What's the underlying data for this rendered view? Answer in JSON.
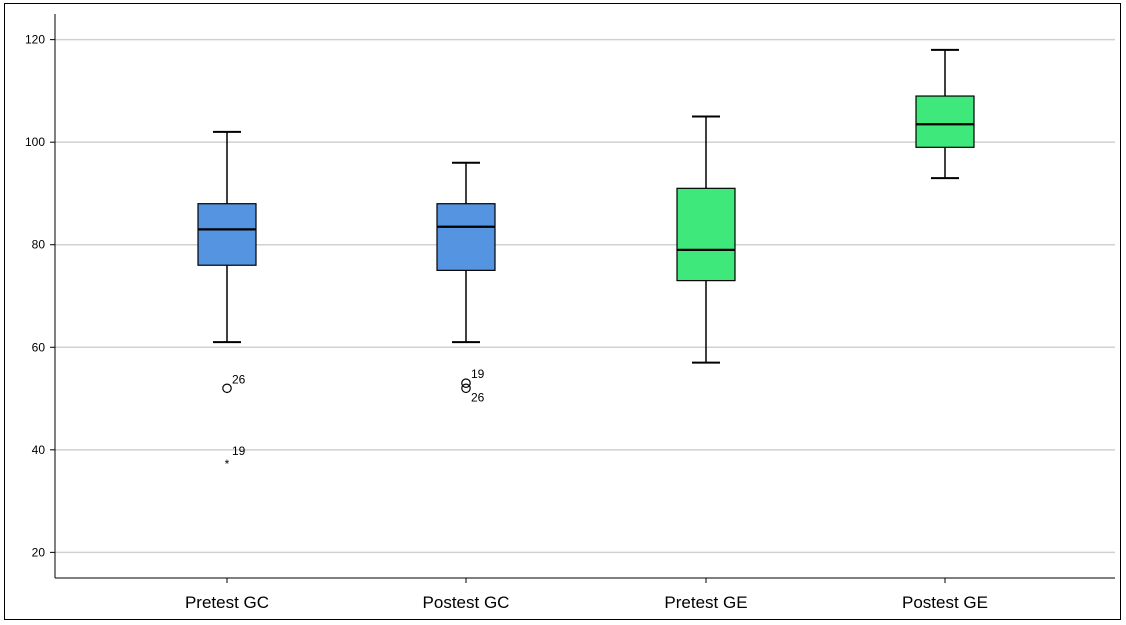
{
  "chart_data": {
    "type": "boxplot",
    "title": "",
    "xlabel": "",
    "ylabel": "",
    "ylim": [
      15,
      125
    ],
    "yticks": [
      20,
      40,
      60,
      80,
      100,
      120
    ],
    "grid": true,
    "categories": [
      "Pretest GC",
      "Postest GC",
      "Pretest GE",
      "Postest GE"
    ],
    "boxes": [
      {
        "category": "Pretest GC",
        "color": "#5594e0",
        "whisker_low": 61,
        "q1": 76,
        "median": 83,
        "q3": 88,
        "whisker_high": 102,
        "outliers": [
          {
            "value": 52,
            "label": "26",
            "marker": "circle"
          },
          {
            "value": 38,
            "label": "19",
            "marker": "star"
          }
        ]
      },
      {
        "category": "Postest GC",
        "color": "#5594e0",
        "whisker_low": 61,
        "q1": 75,
        "median": 83.5,
        "q3": 88,
        "whisker_high": 96,
        "outliers": [
          {
            "value": 53,
            "label": "19",
            "marker": "circle"
          },
          {
            "value": 52,
            "label": "26",
            "marker": "circle"
          }
        ]
      },
      {
        "category": "Pretest GE",
        "color": "#3ee87a",
        "whisker_low": 57,
        "q1": 73,
        "median": 79,
        "q3": 91,
        "whisker_high": 105,
        "outliers": []
      },
      {
        "category": "Postest GE",
        "color": "#3ee87a",
        "whisker_low": 93,
        "q1": 99,
        "median": 103.5,
        "q3": 109,
        "whisker_high": 118,
        "outliers": []
      }
    ]
  }
}
